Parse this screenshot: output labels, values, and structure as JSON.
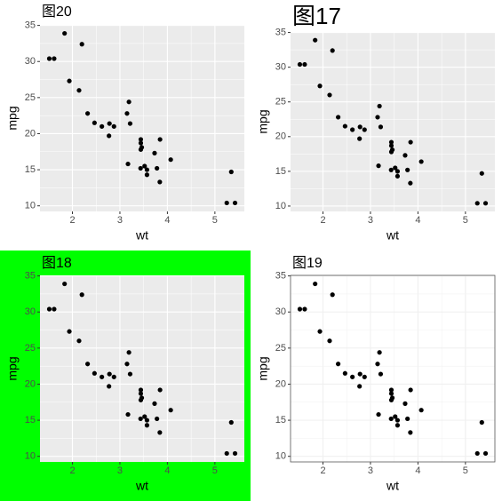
{
  "chart_data": [
    {
      "type": "scatter",
      "title": "图20",
      "x_label": "wt",
      "y_label": "mpg",
      "x": [
        2.62,
        2.875,
        2.32,
        3.215,
        3.44,
        3.46,
        3.57,
        3.19,
        3.15,
        3.44,
        3.44,
        4.07,
        3.73,
        3.78,
        5.25,
        5.424,
        5.345,
        2.2,
        1.615,
        1.835,
        2.465,
        3.52,
        3.435,
        3.84,
        3.845,
        1.935,
        2.14,
        1.513,
        3.17,
        2.77,
        3.57,
        2.78
      ],
      "values": [
        21,
        21,
        22.8,
        21.4,
        18.7,
        18.1,
        14.3,
        24.4,
        22.8,
        19.2,
        17.8,
        16.4,
        17.3,
        15.2,
        10.4,
        10.4,
        14.7,
        32.4,
        30.4,
        33.9,
        21.5,
        15.5,
        15.2,
        13.3,
        19.2,
        27.3,
        26,
        30.4,
        15.8,
        19.7,
        15,
        21.4
      ],
      "color": "#000000",
      "xlim": [
        1.317,
        5.62
      ],
      "ylim": [
        9.225,
        35.075
      ],
      "xticks": [
        2,
        3,
        4,
        5
      ],
      "yticks": [
        10,
        15,
        20,
        25,
        30,
        35
      ],
      "background": "#ffffff",
      "panel_background": "#ebebeb",
      "grid_color": "#ffffff",
      "panel_border": null
    },
    {
      "type": "scatter",
      "title": "图17",
      "x_label": "wt",
      "y_label": "mpg",
      "x": [
        2.62,
        2.875,
        2.32,
        3.215,
        3.44,
        3.46,
        3.57,
        3.19,
        3.15,
        3.44,
        3.44,
        4.07,
        3.73,
        3.78,
        5.25,
        5.424,
        5.345,
        2.2,
        1.615,
        1.835,
        2.465,
        3.52,
        3.435,
        3.84,
        3.845,
        1.935,
        2.14,
        1.513,
        3.17,
        2.77,
        3.57,
        2.78
      ],
      "values": [
        21,
        21,
        22.8,
        21.4,
        18.7,
        18.1,
        14.3,
        24.4,
        22.8,
        19.2,
        17.8,
        16.4,
        17.3,
        15.2,
        10.4,
        10.4,
        14.7,
        32.4,
        30.4,
        33.9,
        21.5,
        15.5,
        15.2,
        13.3,
        19.2,
        27.3,
        26,
        30.4,
        15.8,
        19.7,
        15,
        21.4
      ],
      "color": "#000000",
      "xlim": [
        1.317,
        5.62
      ],
      "ylim": [
        9.225,
        35.075
      ],
      "xticks": [
        2,
        3,
        4,
        5
      ],
      "yticks": [
        10,
        15,
        20,
        25,
        30,
        35
      ],
      "background": "#ffffff",
      "panel_background": "#ebebeb",
      "grid_color": "#ffffff",
      "panel_border": null
    },
    {
      "type": "scatter",
      "title": "图18",
      "x_label": "wt",
      "y_label": "mpg",
      "x": [
        2.62,
        2.875,
        2.32,
        3.215,
        3.44,
        3.46,
        3.57,
        3.19,
        3.15,
        3.44,
        3.44,
        4.07,
        3.73,
        3.78,
        5.25,
        5.424,
        5.345,
        2.2,
        1.615,
        1.835,
        2.465,
        3.52,
        3.435,
        3.84,
        3.845,
        1.935,
        2.14,
        1.513,
        3.17,
        2.77,
        3.57,
        2.78
      ],
      "values": [
        21,
        21,
        22.8,
        21.4,
        18.7,
        18.1,
        14.3,
        24.4,
        22.8,
        19.2,
        17.8,
        16.4,
        17.3,
        15.2,
        10.4,
        10.4,
        14.7,
        32.4,
        30.4,
        33.9,
        21.5,
        15.5,
        15.2,
        13.3,
        19.2,
        27.3,
        26,
        30.4,
        15.8,
        19.7,
        15,
        21.4
      ],
      "color": "#000000",
      "xlim": [
        1.317,
        5.62
      ],
      "ylim": [
        9.225,
        35.075
      ],
      "xticks": [
        2,
        3,
        4,
        5
      ],
      "yticks": [
        10,
        15,
        20,
        25,
        30,
        35
      ],
      "background": "#00ff00",
      "panel_background": "#ebebeb",
      "grid_color": "#ffffff",
      "panel_border": null
    },
    {
      "type": "scatter",
      "title": "图19",
      "x_label": "wt",
      "y_label": "mpg",
      "x": [
        2.62,
        2.875,
        2.32,
        3.215,
        3.44,
        3.46,
        3.57,
        3.19,
        3.15,
        3.44,
        3.44,
        4.07,
        3.73,
        3.78,
        5.25,
        5.424,
        5.345,
        2.2,
        1.615,
        1.835,
        2.465,
        3.52,
        3.435,
        3.84,
        3.845,
        1.935,
        2.14,
        1.513,
        3.17,
        2.77,
        3.57,
        2.78
      ],
      "values": [
        21,
        21,
        22.8,
        21.4,
        18.7,
        18.1,
        14.3,
        24.4,
        22.8,
        19.2,
        17.8,
        16.4,
        17.3,
        15.2,
        10.4,
        10.4,
        14.7,
        32.4,
        30.4,
        33.9,
        21.5,
        15.5,
        15.2,
        13.3,
        19.2,
        27.3,
        26,
        30.4,
        15.8,
        19.7,
        15,
        21.4
      ],
      "color": "#000000",
      "xlim": [
        1.317,
        5.62
      ],
      "ylim": [
        9.225,
        35.075
      ],
      "xticks": [
        2,
        3,
        4,
        5
      ],
      "yticks": [
        10,
        15,
        20,
        25,
        30,
        35
      ],
      "background": "#ffffff",
      "panel_background": "#ffffff",
      "grid_color": "#f0f0f0",
      "panel_border": "#555555"
    }
  ]
}
